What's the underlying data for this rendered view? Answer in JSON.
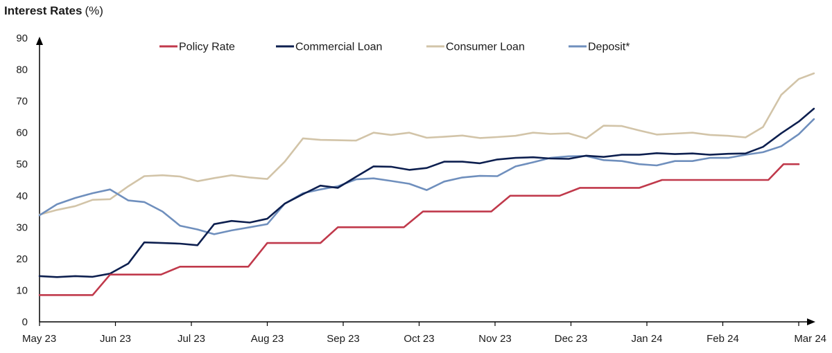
{
  "colors": {
    "policy": "#c0394b",
    "commercial": "#0d1f4f",
    "consumer": "#d2c4a8",
    "deposit": "#6f8fbd",
    "axis": "#000000"
  },
  "chart_data": {
    "type": "line",
    "title": "Interest Rates",
    "title_unit": "(%)",
    "ylim": [
      0,
      90
    ],
    "yticks": [
      "0",
      "10",
      "20",
      "30",
      "40",
      "50",
      "60",
      "70",
      "80",
      "90"
    ],
    "xlim": [
      0,
      10
    ],
    "xticks": [
      "May 23",
      "Jun 23",
      "Jul 23",
      "Aug 23",
      "Sep 23",
      "Oct 23",
      "Nov 23",
      "Dec 23",
      "Jan 24",
      "Feb 24",
      "Mar 24"
    ],
    "grid": false,
    "legend_position": "top",
    "series": [
      {
        "name": "Policy Rate",
        "color_key": "policy",
        "points": [
          [
            0,
            8.5
          ],
          [
            0.7,
            8.5
          ],
          [
            0.93,
            15
          ],
          [
            1.6,
            15
          ],
          [
            1.85,
            17.5
          ],
          [
            2.75,
            17.5
          ],
          [
            3,
            25
          ],
          [
            3.7,
            25
          ],
          [
            3.93,
            30
          ],
          [
            4.8,
            30
          ],
          [
            5.05,
            35
          ],
          [
            5.95,
            35
          ],
          [
            6.2,
            40
          ],
          [
            6.85,
            40
          ],
          [
            7.12,
            42.5
          ],
          [
            7.9,
            42.5
          ],
          [
            8.2,
            45
          ],
          [
            9.6,
            45
          ],
          [
            9.8,
            50
          ],
          [
            10,
            50
          ]
        ]
      },
      {
        "name": "Commercial Loan",
        "color_key": "commercial",
        "points": [
          [
            0,
            14.5
          ],
          [
            0.23,
            14.2
          ],
          [
            0.47,
            14.5
          ],
          [
            0.7,
            14.3
          ],
          [
            0.93,
            15.3
          ],
          [
            1.17,
            18.5
          ],
          [
            1.38,
            25.2
          ],
          [
            1.62,
            25
          ],
          [
            1.85,
            24.8
          ],
          [
            2.08,
            24.3
          ],
          [
            2.3,
            31
          ],
          [
            2.53,
            32
          ],
          [
            2.77,
            31.5
          ],
          [
            3,
            32.7
          ],
          [
            3.23,
            37.5
          ],
          [
            3.47,
            40.5
          ],
          [
            3.7,
            43.2
          ],
          [
            3.93,
            42.5
          ],
          [
            4.17,
            46
          ],
          [
            4.4,
            49.3
          ],
          [
            4.63,
            49.2
          ],
          [
            4.87,
            48.2
          ],
          [
            5.1,
            48.8
          ],
          [
            5.33,
            50.8
          ],
          [
            5.57,
            50.8
          ],
          [
            5.8,
            50.3
          ],
          [
            6.03,
            51.5
          ],
          [
            6.27,
            52
          ],
          [
            6.5,
            52.2
          ],
          [
            6.73,
            51.8
          ],
          [
            6.97,
            51.7
          ],
          [
            7.2,
            52.7
          ],
          [
            7.43,
            52.3
          ],
          [
            7.67,
            53
          ],
          [
            7.9,
            53
          ],
          [
            8.13,
            53.5
          ],
          [
            8.37,
            53.2
          ],
          [
            8.6,
            53.4
          ],
          [
            8.83,
            53
          ],
          [
            9.07,
            53.3
          ],
          [
            9.3,
            53.4
          ],
          [
            9.53,
            55.5
          ],
          [
            9.77,
            59.8
          ],
          [
            10,
            63.5
          ],
          [
            10.2,
            67.6
          ]
        ]
      },
      {
        "name": "Consumer Loan",
        "color_key": "consumer",
        "points": [
          [
            0,
            34
          ],
          [
            0.23,
            35.5
          ],
          [
            0.47,
            36.7
          ],
          [
            0.7,
            38.7
          ],
          [
            0.93,
            38.9
          ],
          [
            1.17,
            43
          ],
          [
            1.38,
            46.2
          ],
          [
            1.62,
            46.5
          ],
          [
            1.85,
            46.1
          ],
          [
            2.08,
            44.6
          ],
          [
            2.3,
            45.6
          ],
          [
            2.53,
            46.5
          ],
          [
            2.77,
            45.8
          ],
          [
            3,
            45.3
          ],
          [
            3.23,
            50.8
          ],
          [
            3.47,
            58.2
          ],
          [
            3.7,
            57.7
          ],
          [
            3.93,
            57.6
          ],
          [
            4.17,
            57.5
          ],
          [
            4.4,
            60
          ],
          [
            4.63,
            59.3
          ],
          [
            4.87,
            60
          ],
          [
            5.1,
            58.4
          ],
          [
            5.33,
            58.7
          ],
          [
            5.57,
            59.1
          ],
          [
            5.8,
            58.3
          ],
          [
            6.03,
            58.6
          ],
          [
            6.27,
            59
          ],
          [
            6.5,
            60
          ],
          [
            6.73,
            59.6
          ],
          [
            6.97,
            59.8
          ],
          [
            7.2,
            58.2
          ],
          [
            7.43,
            62.2
          ],
          [
            7.67,
            62.1
          ],
          [
            7.9,
            60.7
          ],
          [
            8.13,
            59.4
          ],
          [
            8.37,
            59.7
          ],
          [
            8.6,
            60
          ],
          [
            8.83,
            59.3
          ],
          [
            9.07,
            59
          ],
          [
            9.3,
            58.5
          ],
          [
            9.53,
            61.8
          ],
          [
            9.77,
            72
          ],
          [
            10,
            77
          ],
          [
            10.2,
            78.8
          ]
        ]
      },
      {
        "name": "Deposit*",
        "color_key": "deposit",
        "points": [
          [
            0,
            33.8
          ],
          [
            0.23,
            37.3
          ],
          [
            0.47,
            39.3
          ],
          [
            0.7,
            40.8
          ],
          [
            0.93,
            42
          ],
          [
            1.17,
            38.5
          ],
          [
            1.38,
            38
          ],
          [
            1.62,
            35
          ],
          [
            1.85,
            30.5
          ],
          [
            2.08,
            29.3
          ],
          [
            2.3,
            27.8
          ],
          [
            2.53,
            29
          ],
          [
            2.77,
            30
          ],
          [
            3,
            31
          ],
          [
            3.23,
            37.5
          ],
          [
            3.47,
            40.8
          ],
          [
            3.7,
            42
          ],
          [
            3.93,
            43
          ],
          [
            4.17,
            45.2
          ],
          [
            4.4,
            45.5
          ],
          [
            4.63,
            44.7
          ],
          [
            4.87,
            43.8
          ],
          [
            5.1,
            41.8
          ],
          [
            5.33,
            44.5
          ],
          [
            5.57,
            45.8
          ],
          [
            5.8,
            46.3
          ],
          [
            6.03,
            46.2
          ],
          [
            6.27,
            49.3
          ],
          [
            6.5,
            50.6
          ],
          [
            6.73,
            52
          ],
          [
            6.97,
            52.5
          ],
          [
            7.2,
            52.6
          ],
          [
            7.43,
            51.3
          ],
          [
            7.67,
            51
          ],
          [
            7.9,
            50
          ],
          [
            8.13,
            49.6
          ],
          [
            8.37,
            51
          ],
          [
            8.6,
            51
          ],
          [
            8.83,
            52
          ],
          [
            9.07,
            52
          ],
          [
            9.3,
            53
          ],
          [
            9.53,
            53.8
          ],
          [
            9.77,
            55.7
          ],
          [
            10,
            59.5
          ],
          [
            10.2,
            64.3
          ]
        ]
      }
    ]
  }
}
